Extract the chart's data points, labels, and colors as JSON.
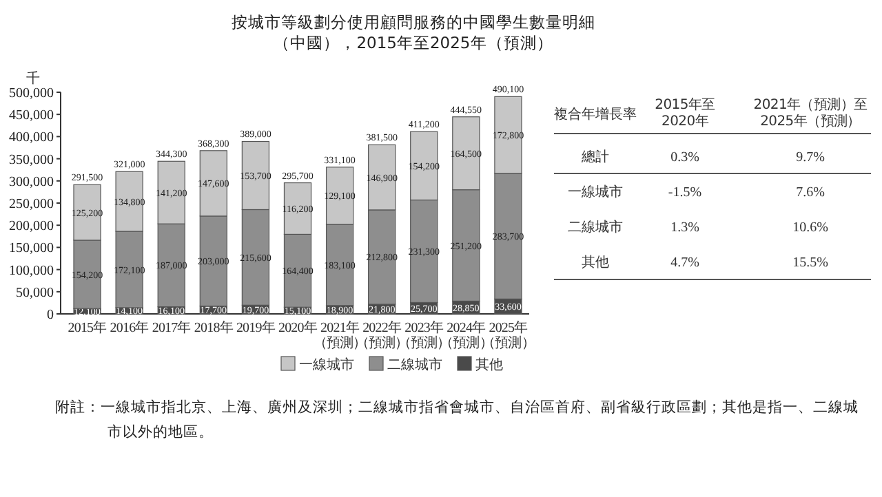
{
  "chart_data": [
    {
      "type": "bar",
      "stacked": true,
      "title": "按城市等級劃分使用顧問服務的中國學生數量明細",
      "subtitle": "（中國），2015年至2025年（預測）",
      "ylabel": "千",
      "categories": [
        "2015年",
        "2016年",
        "2017年",
        "2018年",
        "2019年",
        "2020年",
        "2021年（預測）",
        "2022年（預測）",
        "2023年（預測）",
        "2024年（預測）",
        "2025年（預測）"
      ],
      "series": [
        {
          "name": "其他",
          "color": "#4a4a4a",
          "values": [
            12100,
            14100,
            16100,
            17700,
            19700,
            15100,
            18900,
            21800,
            25700,
            28850,
            33600
          ],
          "value_labels": [
            "12,100",
            "14,100",
            "16,100",
            "17,700",
            "19,700",
            "15,100",
            "18,900",
            "21,800",
            "25,700",
            "28,850",
            "33,600"
          ]
        },
        {
          "name": "二線城市",
          "color": "#8e8e8e",
          "values": [
            154200,
            172100,
            187000,
            203000,
            215600,
            164400,
            183100,
            212800,
            231300,
            251200,
            283700
          ],
          "value_labels": [
            "154,200",
            "172,100",
            "187,000",
            "203,000",
            "215,600",
            "164,400",
            "183,100",
            "212,800",
            "231,300",
            "251,200",
            "283,700"
          ]
        },
        {
          "name": "一線城市",
          "color": "#c6c6c6",
          "values": [
            125200,
            134800,
            141200,
            147600,
            153700,
            116200,
            129100,
            146900,
            154200,
            164500,
            172800
          ],
          "value_labels": [
            "125,200",
            "134,800",
            "141,200",
            "147,600",
            "153,700",
            "116,200",
            "129,100",
            "146,900",
            "154,200",
            "164,500",
            "172,800"
          ]
        }
      ],
      "totals": [
        "291,500",
        "321,000",
        "344,300",
        "368,300",
        "389,000",
        "295,700",
        "331,100",
        "381,500",
        "411,200",
        "444,550",
        "490,100"
      ],
      "legend": "bottom",
      "ylim": [
        0,
        500000
      ],
      "yticks": [
        {
          "value": 0,
          "label": "0"
        },
        {
          "value": 50000,
          "label": "50,000"
        },
        {
          "value": 100000,
          "label": "100,000"
        },
        {
          "value": 150000,
          "label": "150,000"
        },
        {
          "value": 200000,
          "label": "200,000"
        },
        {
          "value": 250000,
          "label": "250,000"
        },
        {
          "value": 300000,
          "label": "300,000"
        },
        {
          "value": 350000,
          "label": "350,000"
        },
        {
          "value": 400000,
          "label": "400,000"
        },
        {
          "value": 450000,
          "label": "450,000"
        },
        {
          "value": 500000,
          "label": "500,000"
        }
      ],
      "annotations": [
        "附註：一線城市指北京、上海、廣州及深圳；二線城市指省會城市、自治區首府、副省級行政區劃；其他是指一、二線城市以外的地區。"
      ]
    },
    {
      "type": "other",
      "title": "複合年增長率",
      "categories": [
        "2015年至2020年",
        "2021年（預測）至2025年（預測）"
      ],
      "y_categories": [
        "總計",
        "一線城市",
        "二線城市",
        "其他"
      ],
      "cell_labels": [
        [
          "0.3%",
          "9.7%"
        ],
        [
          "-1.5%",
          "7.6%"
        ],
        [
          "1.3%",
          "10.6%"
        ],
        [
          "4.7%",
          "15.5%"
        ]
      ]
    }
  ]
}
